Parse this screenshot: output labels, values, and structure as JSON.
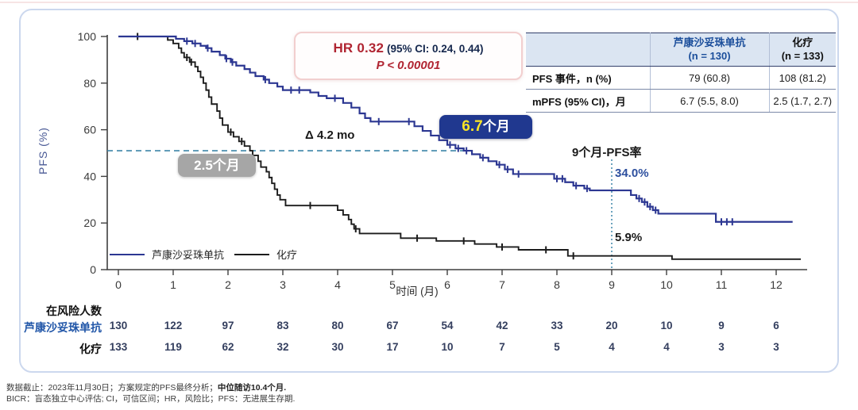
{
  "hr_box": {
    "hr_label": "HR 0.32",
    "ci_label": "(95% CI: 0.24, 0.44)",
    "p_label": "P < 0.00001"
  },
  "summary_table": {
    "col_headers": [
      {
        "line1": "芦康沙妥珠单抗",
        "line2": "(n = 130)"
      },
      {
        "line1": "化疗",
        "line2": "(n = 133)"
      }
    ],
    "rows": [
      {
        "label": "PFS 事件，n (%)",
        "values": [
          "79 (60.8)",
          "108 (81.2)"
        ]
      },
      {
        "label": "mPFS (95% CI)，月",
        "values": [
          "6.7 (5.5, 8.0)",
          "2.5 (1.7, 2.7)"
        ]
      }
    ]
  },
  "annotations": {
    "delta": "Δ 4.2 mo",
    "badge_drug_num": "6.7",
    "badge_drug_unit": "个月",
    "badge_chemo": "2.5个月",
    "pfs9_title": "9个月-PFS率",
    "pfs9_drug": "34.0%",
    "pfs9_chemo": "5.9%"
  },
  "legend": {
    "items": [
      {
        "label": "芦康沙妥珠单抗",
        "color": "#2c3792"
      },
      {
        "label": "化疗",
        "color": "#1c1c1c"
      }
    ]
  },
  "chart_data": {
    "type": "line",
    "subtype": "kaplan-meier-step",
    "title": "",
    "xlabel": "时间 (月)",
    "ylabel": "PFS (%)",
    "xlim": [
      0,
      12.55
    ],
    "ylim": [
      0,
      100
    ],
    "xticks": [
      0,
      1,
      2,
      3,
      4,
      5,
      6,
      7,
      8,
      9,
      10,
      11,
      12
    ],
    "yticks": [
      0,
      20,
      40,
      60,
      80,
      100
    ],
    "grid": false,
    "legend_position": "lower-left-inside",
    "median_reference_pct": 51,
    "median_dashed_color": "#3d85a8",
    "nine_month_line_x": 9,
    "series": [
      {
        "name": "芦康沙妥珠单抗",
        "color": "#2c3792",
        "median_months": 6.7,
        "pfs_9mo_pct": 34.0,
        "steps": [
          [
            0,
            100
          ],
          [
            1.05,
            99
          ],
          [
            1.2,
            98
          ],
          [
            1.35,
            97
          ],
          [
            1.5,
            96
          ],
          [
            1.6,
            95
          ],
          [
            1.7,
            93.5
          ],
          [
            1.85,
            92
          ],
          [
            1.95,
            90.5
          ],
          [
            2.05,
            89
          ],
          [
            2.15,
            87.5
          ],
          [
            2.3,
            86
          ],
          [
            2.4,
            84.5
          ],
          [
            2.5,
            83
          ],
          [
            2.65,
            81.5
          ],
          [
            2.75,
            80
          ],
          [
            2.9,
            78.5
          ],
          [
            3.0,
            77
          ],
          [
            3.5,
            76
          ],
          [
            3.65,
            74.5
          ],
          [
            3.8,
            73.5
          ],
          [
            4.1,
            71.5
          ],
          [
            4.25,
            69.5
          ],
          [
            4.4,
            67
          ],
          [
            4.5,
            65
          ],
          [
            4.6,
            63.5
          ],
          [
            5.4,
            61.5
          ],
          [
            5.55,
            59.5
          ],
          [
            5.7,
            57.5
          ],
          [
            5.85,
            55.5
          ],
          [
            6.0,
            53.5
          ],
          [
            6.15,
            52
          ],
          [
            6.3,
            51
          ],
          [
            6.45,
            49.5
          ],
          [
            6.6,
            48
          ],
          [
            6.75,
            46.5
          ],
          [
            6.9,
            45
          ],
          [
            7.05,
            43
          ],
          [
            7.2,
            41
          ],
          [
            7.95,
            39
          ],
          [
            8.15,
            37.5
          ],
          [
            8.3,
            36
          ],
          [
            8.5,
            34.8
          ],
          [
            8.6,
            34
          ],
          [
            9.35,
            32
          ],
          [
            9.45,
            30.5
          ],
          [
            9.55,
            29
          ],
          [
            9.65,
            27
          ],
          [
            9.75,
            25.5
          ],
          [
            9.85,
            24
          ],
          [
            10.9,
            20.5
          ],
          [
            12.3,
            20.5
          ]
        ],
        "censors": [
          [
            1.25,
            98
          ],
          [
            1.4,
            97
          ],
          [
            1.63,
            95
          ],
          [
            1.97,
            90.5
          ],
          [
            2.08,
            89
          ],
          [
            2.68,
            81.5
          ],
          [
            3.15,
            77
          ],
          [
            3.3,
            77
          ],
          [
            3.95,
            73.5
          ],
          [
            4.75,
            63.5
          ],
          [
            5.3,
            63.5
          ],
          [
            6.05,
            53.5
          ],
          [
            6.2,
            52
          ],
          [
            6.35,
            51
          ],
          [
            6.65,
            48
          ],
          [
            6.95,
            45
          ],
          [
            7.1,
            43
          ],
          [
            7.3,
            41
          ],
          [
            8.0,
            39
          ],
          [
            8.1,
            39
          ],
          [
            8.35,
            36
          ],
          [
            8.55,
            34.8
          ],
          [
            9.5,
            30.5
          ],
          [
            9.6,
            29
          ],
          [
            9.7,
            27
          ],
          [
            9.8,
            25.5
          ],
          [
            11.0,
            20.5
          ],
          [
            11.1,
            20.5
          ],
          [
            11.2,
            20.5
          ]
        ]
      },
      {
        "name": "化疗",
        "color": "#1c1c1c",
        "median_months": 2.5,
        "pfs_9mo_pct": 5.9,
        "steps": [
          [
            0,
            100
          ],
          [
            0.9,
            98.5
          ],
          [
            1.0,
            97
          ],
          [
            1.1,
            95
          ],
          [
            1.15,
            93
          ],
          [
            1.2,
            91
          ],
          [
            1.3,
            89
          ],
          [
            1.4,
            87
          ],
          [
            1.45,
            85
          ],
          [
            1.5,
            82.5
          ],
          [
            1.55,
            80
          ],
          [
            1.6,
            77
          ],
          [
            1.65,
            74
          ],
          [
            1.7,
            71
          ],
          [
            1.8,
            68
          ],
          [
            1.85,
            65
          ],
          [
            1.9,
            62
          ],
          [
            2.0,
            59
          ],
          [
            2.1,
            57
          ],
          [
            2.2,
            55
          ],
          [
            2.3,
            53
          ],
          [
            2.4,
            51
          ],
          [
            2.45,
            49
          ],
          [
            2.55,
            46.5
          ],
          [
            2.6,
            44
          ],
          [
            2.7,
            42
          ],
          [
            2.75,
            39.5
          ],
          [
            2.8,
            37
          ],
          [
            2.85,
            34.5
          ],
          [
            2.9,
            32
          ],
          [
            2.95,
            30
          ],
          [
            3.05,
            27.5
          ],
          [
            4.0,
            25.5
          ],
          [
            4.1,
            23.5
          ],
          [
            4.2,
            21.5
          ],
          [
            4.25,
            19.5
          ],
          [
            4.3,
            17.5
          ],
          [
            4.4,
            15.5
          ],
          [
            5.15,
            13.5
          ],
          [
            5.8,
            12.3
          ],
          [
            6.5,
            11
          ],
          [
            6.9,
            9.7
          ],
          [
            7.3,
            8.5
          ],
          [
            8.2,
            5.9
          ],
          [
            10.1,
            4.5
          ],
          [
            12.45,
            4.5
          ]
        ],
        "censors": [
          [
            0.35,
            100
          ],
          [
            1.25,
            91
          ],
          [
            1.33,
            89
          ],
          [
            2.05,
            59
          ],
          [
            2.25,
            55
          ],
          [
            3.5,
            27.5
          ],
          [
            4.33,
            17.5
          ],
          [
            5.45,
            13.5
          ],
          [
            6.3,
            12.3
          ],
          [
            7.0,
            9.7
          ],
          [
            7.8,
            8.5
          ],
          [
            8.3,
            5.9
          ]
        ]
      }
    ]
  },
  "at_risk": {
    "title": "在风险人数",
    "rows": [
      {
        "label": "芦康沙妥珠单抗",
        "color": "#2156a8",
        "values": [
          130,
          122,
          97,
          83,
          80,
          67,
          54,
          42,
          33,
          20,
          10,
          9,
          6
        ]
      },
      {
        "label": "化疗",
        "color": "#111111",
        "values": [
          133,
          119,
          62,
          32,
          30,
          17,
          10,
          7,
          5,
          4,
          4,
          3,
          3
        ]
      }
    ]
  },
  "footer": {
    "line1_normal": "数据截止：2023年11月30日；方案规定的PFS最终分析；",
    "line1_bold": "中位随访10.4个月.",
    "line2": "BICR：盲态独立中心评估; CI，可信区间；HR，风险比；PFS：无进展生存期."
  }
}
